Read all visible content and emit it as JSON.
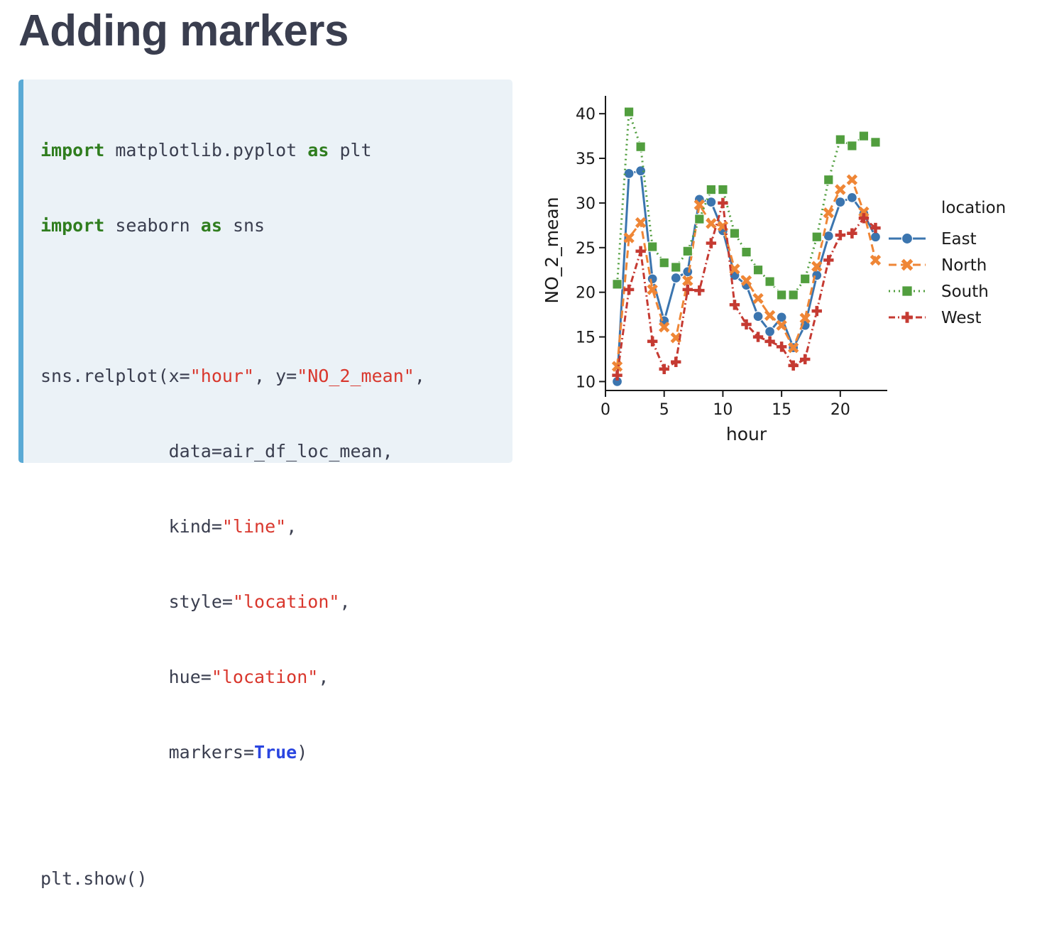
{
  "slide": {
    "title": "Adding markers"
  },
  "code": {
    "line1": {
      "kw1": "import",
      "mod": " matplotlib.pyplot ",
      "kw2": "as",
      "alias": " plt"
    },
    "line2": {
      "kw1": "import",
      "mod": " seaborn ",
      "kw2": "as",
      "alias": " sns"
    },
    "line3": {
      "a": "sns.relplot(x=",
      "s1": "\"hour\"",
      "b": ", y=",
      "s2": "\"NO_2_mean\"",
      "c": ","
    },
    "line4": {
      "a": "            data=air_df_loc_mean,"
    },
    "line5": {
      "a": "            kind=",
      "s": "\"line\"",
      "b": ","
    },
    "line6": {
      "a": "            style=",
      "s": "\"location\"",
      "b": ","
    },
    "line7": {
      "a": "            hue=",
      "s": "\"location\"",
      "b": ","
    },
    "line8": {
      "a": "            markers=",
      "v": "True",
      "b": ")"
    },
    "line9": {
      "a": "plt.show()"
    }
  },
  "chart_data": {
    "type": "line",
    "xlabel": "hour",
    "ylabel": "NO_2_mean",
    "xlim": [
      0,
      24
    ],
    "ylim": [
      9,
      42
    ],
    "xticks": [
      0,
      5,
      10,
      15,
      20
    ],
    "yticks": [
      10,
      15,
      20,
      25,
      30,
      35,
      40
    ],
    "legend_title": "location",
    "legend_position": "right",
    "grid": false,
    "x": [
      1,
      2,
      3,
      4,
      5,
      6,
      7,
      8,
      9,
      10,
      11,
      12,
      13,
      14,
      15,
      16,
      17,
      18,
      19,
      20,
      21,
      22,
      23
    ],
    "series": [
      {
        "name": "East",
        "color": "#3b75af",
        "dash": "solid",
        "marker": "circle",
        "values": [
          10.0,
          33.3,
          33.6,
          21.5,
          16.8,
          21.6,
          22.3,
          30.4,
          30.1,
          26.9,
          21.9,
          20.8,
          17.3,
          15.6,
          17.2,
          13.8,
          16.3,
          21.9,
          26.3,
          30.1,
          30.6,
          28.8,
          26.2
        ]
      },
      {
        "name": "North",
        "color": "#ef8636",
        "dash": "long-dash",
        "marker": "x",
        "values": [
          11.7,
          26.1,
          27.8,
          20.3,
          16.1,
          14.9,
          21.3,
          29.8,
          27.7,
          27.4,
          22.6,
          21.3,
          19.3,
          17.4,
          16.3,
          13.8,
          17.1,
          22.9,
          28.9,
          31.5,
          32.6,
          29.0,
          23.6
        ]
      },
      {
        "name": "South",
        "color": "#519e3e",
        "dash": "dotted",
        "marker": "square",
        "values": [
          20.9,
          40.2,
          36.3,
          25.1,
          23.3,
          22.8,
          24.6,
          28.2,
          31.5,
          31.5,
          26.6,
          24.5,
          22.5,
          21.2,
          19.7,
          19.7,
          21.5,
          26.2,
          32.6,
          37.1,
          36.4,
          37.5,
          36.8
        ]
      },
      {
        "name": "West",
        "color": "#c53a32",
        "dash": "dash-dot",
        "marker": "plus",
        "values": [
          10.7,
          20.3,
          24.6,
          14.5,
          11.4,
          12.2,
          20.3,
          20.2,
          25.5,
          30.0,
          18.6,
          16.4,
          15.0,
          14.5,
          13.9,
          11.8,
          12.5,
          17.9,
          23.6,
          26.4,
          26.6,
          28.3,
          27.2
        ]
      }
    ]
  }
}
